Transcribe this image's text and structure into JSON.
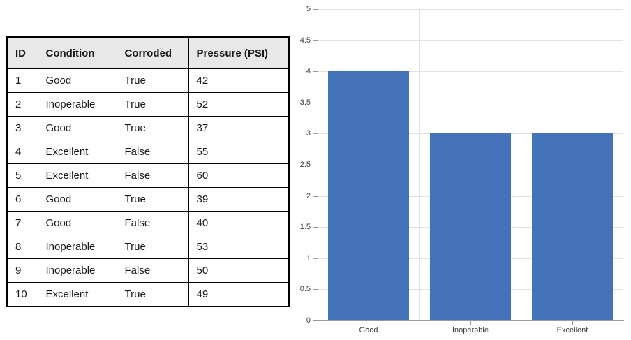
{
  "table": {
    "columns": [
      "ID",
      "Condition",
      "Corroded",
      "Pressure (PSI)"
    ],
    "rows": [
      [
        "1",
        "Good",
        "True",
        "42"
      ],
      [
        "2",
        "Inoperable",
        "True",
        "52"
      ],
      [
        "3",
        "Good",
        "True",
        "37"
      ],
      [
        "4",
        "Excellent",
        "False",
        "55"
      ],
      [
        "5",
        "Excellent",
        "False",
        "60"
      ],
      [
        "6",
        "Good",
        "True",
        "39"
      ],
      [
        "7",
        "Good",
        "False",
        "40"
      ],
      [
        "8",
        "Inoperable",
        "True",
        "53"
      ],
      [
        "9",
        "Inoperable",
        "False",
        "50"
      ],
      [
        "10",
        "Excellent",
        "True",
        "49"
      ]
    ],
    "header_bg": "#e8e8e8",
    "border_color": "#000000",
    "text_color": "#1a1a1a"
  },
  "chart_data": {
    "type": "bar",
    "categories": [
      "Good",
      "Inoperable",
      "Excellent"
    ],
    "values": [
      4,
      3,
      3
    ],
    "title": "",
    "xlabel": "",
    "ylabel": "",
    "ylim": [
      0,
      5
    ],
    "ytick_step": 0.5,
    "ytick_labels": [
      "0",
      "0.5",
      "1",
      "1.5",
      "2",
      "2.5",
      "3",
      "3.5",
      "4",
      "4.5",
      "5"
    ],
    "grid": true,
    "legend_position": "none",
    "bar_color": "#4472B9",
    "grid_color": "#e2e2e2",
    "axis_color": "#9a9a9a",
    "tick_label_color": "#3c3c3c"
  }
}
